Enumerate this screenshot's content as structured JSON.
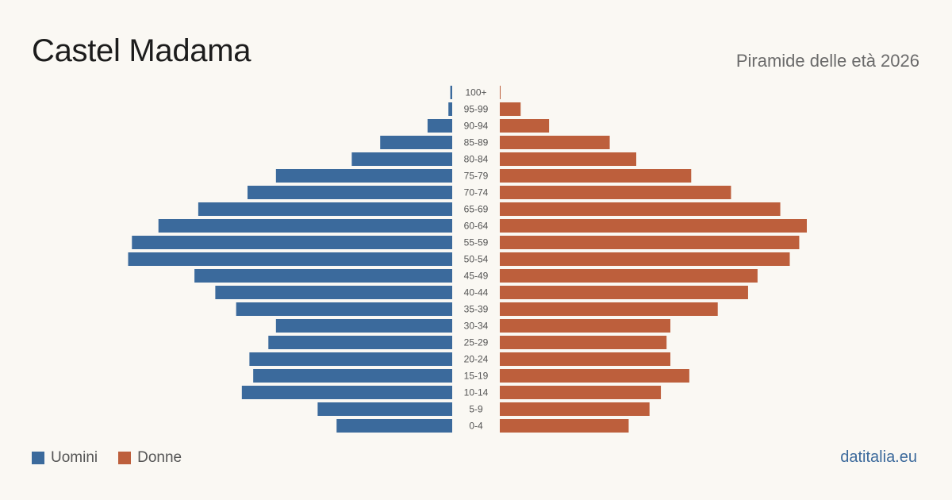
{
  "title": "Castel Madama",
  "subtitle": "Piramide delle età 2026",
  "source": "datitalia.eu",
  "colors": {
    "men": "#3b6a9c",
    "women": "#bd5f3c",
    "background": "#faf8f3"
  },
  "legend": {
    "men": "Uomini",
    "women": "Donne"
  },
  "chart_data": {
    "type": "bar",
    "orientation": "horizontal-pyramid",
    "categories": [
      "100+",
      "95-99",
      "90-94",
      "85-89",
      "80-84",
      "75-79",
      "70-74",
      "65-69",
      "60-64",
      "55-59",
      "50-54",
      "45-49",
      "40-44",
      "35-39",
      "30-34",
      "25-29",
      "20-24",
      "15-19",
      "10-14",
      "5-9",
      "0-4"
    ],
    "series": [
      {
        "name": "Uomini",
        "side": "left",
        "values": [
          1,
          2,
          13,
          38,
          53,
          93,
          108,
          134,
          155,
          169,
          171,
          136,
          125,
          114,
          93,
          97,
          107,
          105,
          111,
          71,
          61
        ]
      },
      {
        "name": "Donne",
        "side": "right",
        "values": [
          0.3,
          11,
          26,
          58,
          72,
          101,
          122,
          148,
          162,
          158,
          153,
          136,
          131,
          115,
          90,
          88,
          90,
          100,
          85,
          79,
          68
        ]
      }
    ],
    "scale_max": 180,
    "legend_position": "bottom-left",
    "grid": false
  }
}
